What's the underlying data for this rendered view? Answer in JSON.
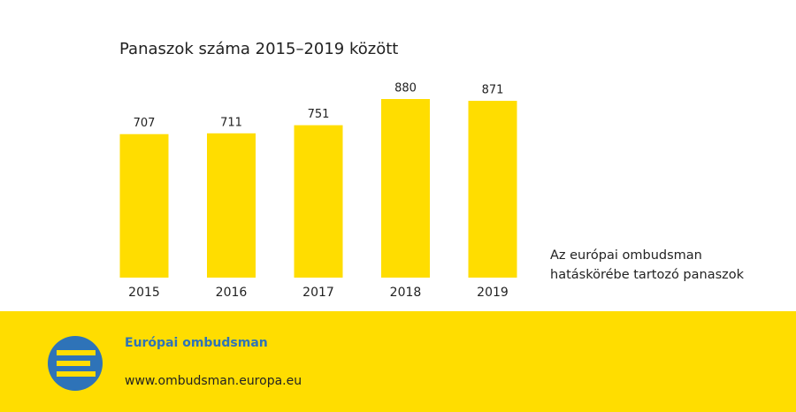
{
  "chart_data": {
    "type": "bar",
    "title": "Panaszok száma 2015–2019 között",
    "categories": [
      "2015",
      "2016",
      "2017",
      "2018",
      "2019"
    ],
    "series": [
      {
        "name": "Az európai ombudsman hatáskörébe tartozó panaszok",
        "color": "#ffdd00",
        "values": [
          707,
          711,
          751,
          880,
          871
        ]
      }
    ]
  },
  "footer": {
    "title": "Európai ombudsman",
    "url": "www.ombudsman.europa.eu"
  }
}
